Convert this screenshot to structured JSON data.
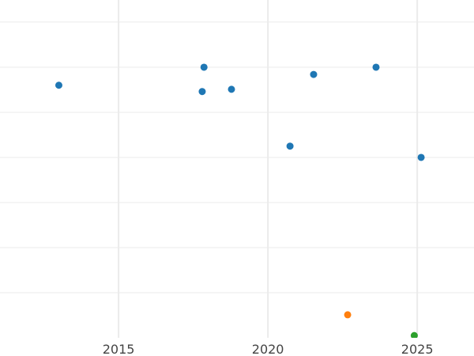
{
  "chart_data": {
    "type": "scatter",
    "title": "",
    "xlabel": "",
    "ylabel": "",
    "xlim": [
      2011.03,
      2026.9
    ],
    "ylim": [
      0,
      7.49
    ],
    "xticks": [
      2015,
      2020,
      2025
    ],
    "xtick_labels": [
      "2015",
      "2020",
      "2025"
    ],
    "yticks": [
      1,
      2,
      3,
      4,
      5,
      6,
      7
    ],
    "ytick_labels_shown": false,
    "grid": true,
    "grid_color": "#ebebeb",
    "series": [
      {
        "color": "#1f77b4",
        "points": [
          {
            "x": 2013.0,
            "y": 5.6
          },
          {
            "x": 2017.86,
            "y": 6.0
          },
          {
            "x": 2017.8,
            "y": 5.46
          },
          {
            "x": 2018.78,
            "y": 5.51
          },
          {
            "x": 2020.74,
            "y": 4.25
          },
          {
            "x": 2021.53,
            "y": 5.84
          },
          {
            "x": 2023.62,
            "y": 6.0
          },
          {
            "x": 2025.13,
            "y": 4.0
          }
        ]
      },
      {
        "color": "#ff7f0e",
        "points": [
          {
            "x": 2022.67,
            "y": 0.51
          }
        ]
      },
      {
        "color": "#2ca02c",
        "points": [
          {
            "x": 2024.9,
            "y": 0.05
          }
        ]
      }
    ]
  }
}
